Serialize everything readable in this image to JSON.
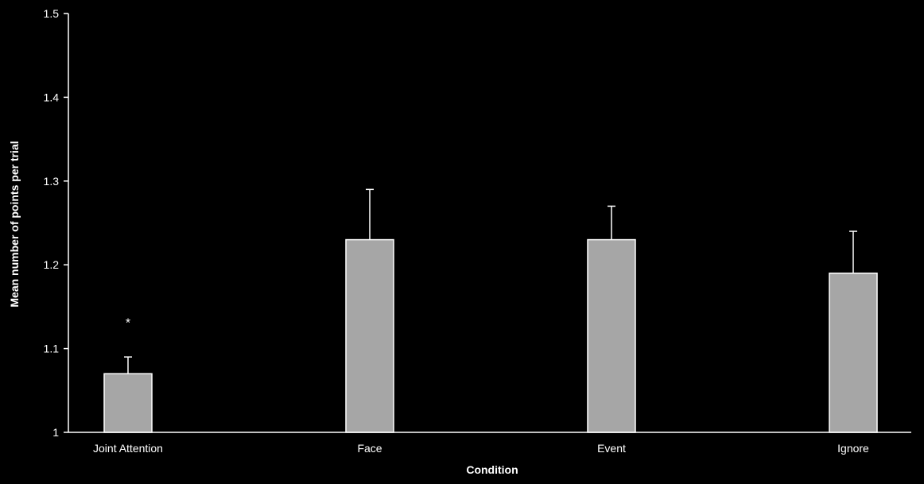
{
  "chart_data": {
    "type": "bar",
    "title": "",
    "xlabel": "Condition",
    "ylabel": "Mean number of points per trial",
    "categories": [
      "Joint Attention",
      "Face",
      "Event",
      "Ignore"
    ],
    "values": [
      1.07,
      1.23,
      1.23,
      1.19
    ],
    "error_upper": [
      1.09,
      1.29,
      1.27,
      1.24
    ],
    "ylim": [
      1.0,
      1.5
    ],
    "yticks": [
      1,
      1.1,
      1.2,
      1.3,
      1.4,
      1.5
    ],
    "ytick_labels": [
      "1",
      "1.1",
      "1.2",
      "1.3",
      "1.4",
      "1.5"
    ],
    "grid": false,
    "bar_color": "#a6a6a6",
    "bar_edge_color": "#ffffff",
    "axis_color": "#ffffff",
    "background_color": "#000000",
    "annotations": [
      {
        "category": "Joint Attention",
        "text": "*",
        "y": 1.135
      }
    ]
  }
}
